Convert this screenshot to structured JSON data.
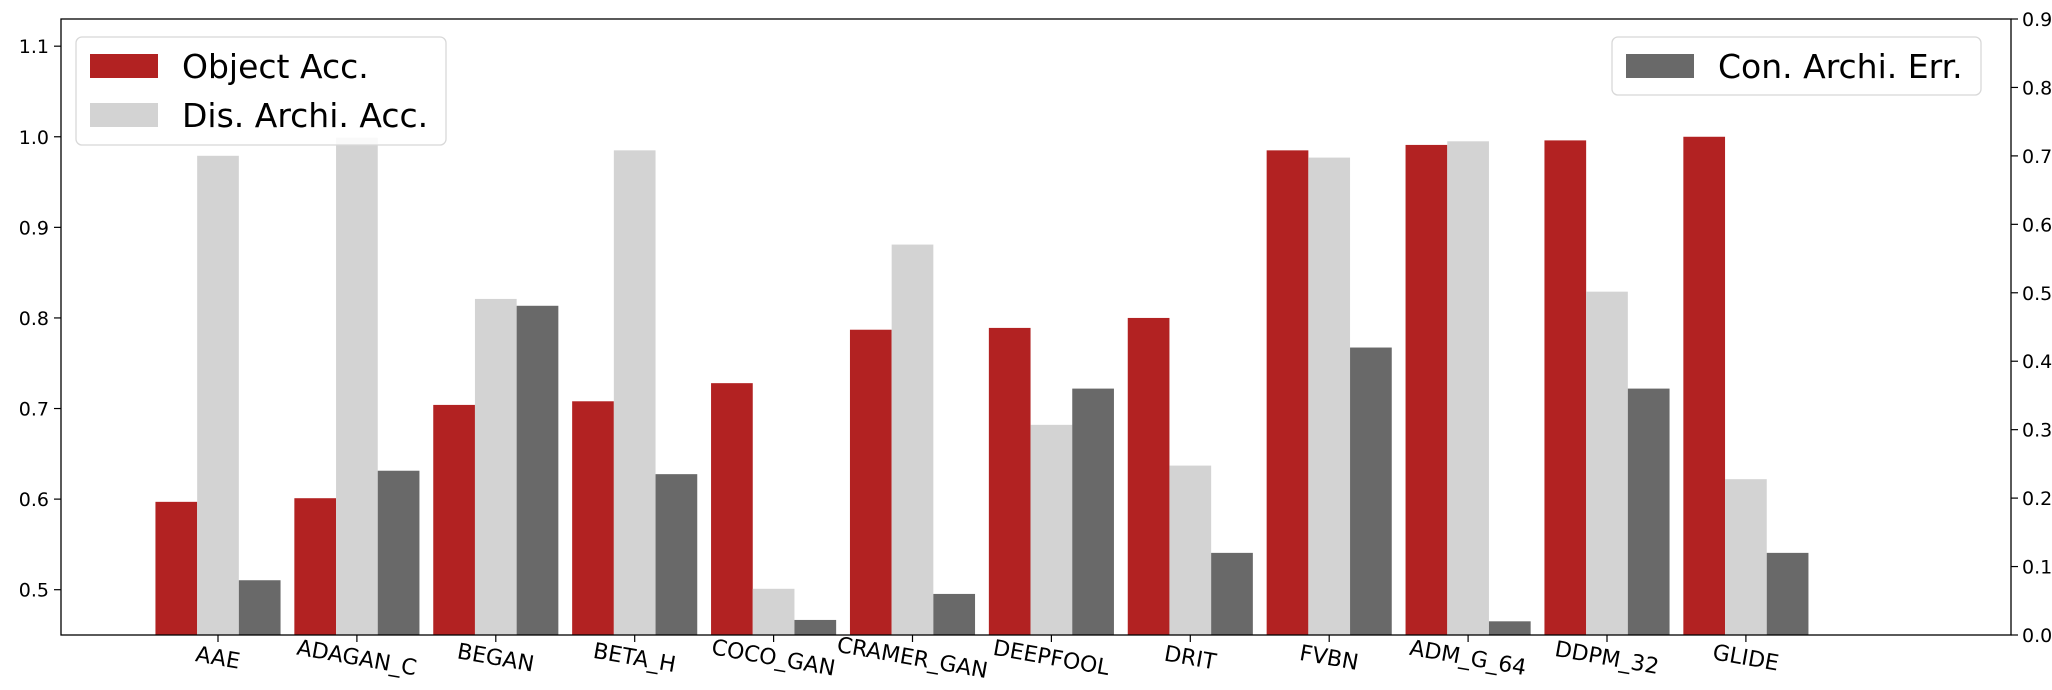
{
  "chart_data": {
    "type": "bar",
    "categories": [
      "AAE",
      "ADAGAN_C",
      "BEGAN",
      "BETA_H",
      "COCO_GAN",
      "CRAMER_GAN",
      "DEEPFOOL",
      "DRIT",
      "FVBN",
      "ADM_G_64",
      "DDPM_32",
      "GLIDE"
    ],
    "series": [
      {
        "name": "Object Acc.",
        "axis": "left",
        "color": "#b22222",
        "values": [
          0.597,
          0.601,
          0.704,
          0.708,
          0.728,
          0.787,
          0.789,
          0.8,
          0.985,
          0.991,
          0.996,
          1.0
        ]
      },
      {
        "name": "Dis. Archi. Acc.",
        "axis": "left",
        "color": "#d3d3d3",
        "values": [
          0.979,
          0.999,
          0.821,
          0.985,
          0.501,
          0.881,
          0.682,
          0.637,
          0.977,
          0.995,
          0.829,
          0.622
        ]
      },
      {
        "name": "Con. Archi. Err.",
        "axis": "right",
        "color": "#696969",
        "values": [
          0.08,
          0.24,
          0.481,
          0.235,
          0.022,
          0.06,
          0.36,
          0.12,
          0.42,
          0.02,
          0.36,
          0.12
        ]
      }
    ],
    "y_left": {
      "lim": [
        0.45,
        1.13
      ],
      "ticks": [
        "0.5",
        "0.6",
        "0.7",
        "0.8",
        "0.9",
        "1.0",
        "1.1"
      ]
    },
    "y_right": {
      "lim": [
        0.0,
        0.9
      ],
      "ticks": [
        "0.0",
        "0.1",
        "0.2",
        "0.3",
        "0.4",
        "0.5",
        "0.6",
        "0.7",
        "0.8",
        "0.9"
      ]
    },
    "legend_left_position": "upper-left",
    "legend_right_position": "upper-right",
    "grid": false
  }
}
